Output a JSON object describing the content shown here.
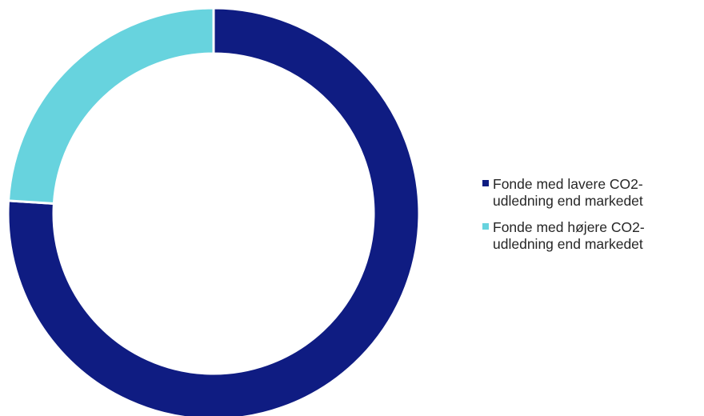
{
  "chart_data": {
    "type": "pie",
    "donut": true,
    "title": "",
    "slices": [
      {
        "name": "Fonde med lavere CO2-udledning end markedet",
        "value": 76,
        "color": "#0f1c82"
      },
      {
        "name": "Fonde med højere CO2-udledning end markedet",
        "value": 24,
        "color": "#67d3de"
      }
    ],
    "legend_placement": "right"
  },
  "legend": {
    "items": [
      {
        "line1": "Fonde med lavere CO2-",
        "line2": "udledning end markedet",
        "color": "#0f1c82"
      },
      {
        "line1": "Fonde med højere CO2-",
        "line2": "udledning end markedet",
        "color": "#67d3de"
      }
    ]
  }
}
